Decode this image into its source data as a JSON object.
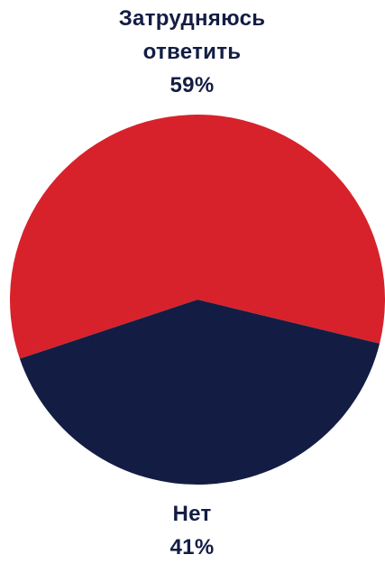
{
  "chart_data": {
    "type": "pie",
    "title": "",
    "slices": [
      {
        "label_lines": [
          "Затрудняюсь",
          "ответить"
        ],
        "value_label": "59%",
        "value": 59,
        "color": "#d7222c"
      },
      {
        "label_lines": [
          "Нет"
        ],
        "value_label": "41%",
        "value": 41,
        "color": "#131d44"
      }
    ],
    "legend": "none",
    "label_color": "#131d44"
  }
}
